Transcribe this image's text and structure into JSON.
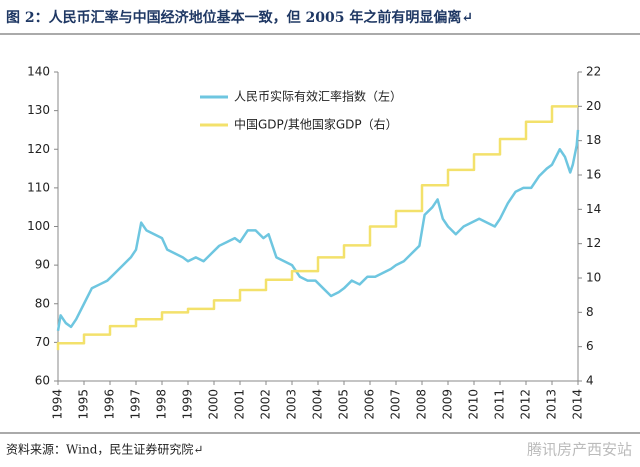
{
  "chart_data": {
    "type": "line",
    "title": "图 2：人民币汇率与中国经济地位基本一致，但 2005 年之前有明显偏离↵",
    "source": "资料来源：Wind，民生证券研究院↵",
    "watermark": "腾讯房产西安站",
    "xlim": [
      1994,
      2014
    ],
    "xticks": [
      1994,
      1995,
      1996,
      1997,
      1998,
      1999,
      2000,
      2001,
      2002,
      2003,
      2004,
      2005,
      2006,
      2007,
      2008,
      2009,
      2010,
      2011,
      2012,
      2013,
      2014
    ],
    "ylim": [
      60,
      140
    ],
    "yticks": [
      60,
      70,
      80,
      90,
      100,
      110,
      120,
      130,
      140
    ],
    "y2lim": [
      4,
      22
    ],
    "y2ticks": [
      4,
      6,
      8,
      10,
      12,
      14,
      16,
      18,
      20,
      22
    ],
    "grid": false,
    "series": [
      {
        "name": "人民币实际有效汇率指数（左）",
        "color": "#6ec6e0",
        "axis": "y",
        "x": [
          1994.0,
          1994.1,
          1994.3,
          1994.5,
          1994.7,
          1995.0,
          1995.3,
          1995.6,
          1995.9,
          1996.2,
          1996.5,
          1996.8,
          1997.0,
          1997.2,
          1997.4,
          1997.7,
          1998.0,
          1998.2,
          1998.5,
          1998.8,
          1999.0,
          1999.3,
          1999.6,
          1999.9,
          2000.2,
          2000.5,
          2000.8,
          2001.0,
          2001.3,
          2001.6,
          2001.9,
          2002.1,
          2002.4,
          2002.7,
          2003.0,
          2003.3,
          2003.6,
          2003.9,
          2004.2,
          2004.5,
          2004.8,
          2005.0,
          2005.3,
          2005.6,
          2005.9,
          2006.2,
          2006.5,
          2006.8,
          2007.0,
          2007.3,
          2007.6,
          2007.9,
          2008.1,
          2008.4,
          2008.6,
          2008.8,
          2009.0,
          2009.3,
          2009.6,
          2009.9,
          2010.2,
          2010.5,
          2010.8,
          2011.0,
          2011.3,
          2011.6,
          2011.9,
          2012.2,
          2012.5,
          2012.8,
          2013.0,
          2013.3,
          2013.5,
          2013.7,
          2013.8,
          2013.95,
          2014.0
        ],
        "values": [
          73,
          77,
          75,
          74,
          76,
          80,
          84,
          85,
          86,
          88,
          90,
          92,
          94,
          101,
          99,
          98,
          97,
          94,
          93,
          92,
          91,
          92,
          91,
          93,
          95,
          96,
          97,
          96,
          99,
          99,
          97,
          98,
          92,
          91,
          90,
          87,
          86,
          86,
          84,
          82,
          83,
          84,
          86,
          85,
          87,
          87,
          88,
          89,
          90,
          91,
          93,
          95,
          103,
          105,
          107,
          102,
          100,
          98,
          100,
          101,
          102,
          101,
          100,
          102,
          106,
          109,
          110,
          110,
          113,
          115,
          116,
          120,
          118,
          114,
          116,
          121,
          125
        ]
      },
      {
        "name": "中国GDP/其他国家GDP（右）",
        "color": "#f3e16b",
        "axis": "y2",
        "x": [
          1994,
          1994,
          1995,
          1995,
          1996,
          1996,
          1997,
          1997,
          1998,
          1998,
          1999,
          1999,
          2000,
          2000,
          2001,
          2001,
          2002,
          2002,
          2003,
          2003,
          2004,
          2004,
          2005,
          2005,
          2006,
          2006,
          2007,
          2007,
          2008,
          2008,
          2009,
          2009,
          2010,
          2010,
          2011,
          2011,
          2012,
          2012,
          2013,
          2013,
          2014
        ],
        "values": [
          5.8,
          6.2,
          6.2,
          6.7,
          6.7,
          7.2,
          7.2,
          7.6,
          7.6,
          8.0,
          8.0,
          8.2,
          8.2,
          8.7,
          8.7,
          9.3,
          9.3,
          9.9,
          9.9,
          10.4,
          10.4,
          11.2,
          11.2,
          11.9,
          11.9,
          13.0,
          13.0,
          13.9,
          13.9,
          15.4,
          15.4,
          16.3,
          16.3,
          17.2,
          17.2,
          18.1,
          18.1,
          19.1,
          19.1,
          20.0,
          20.0
        ]
      }
    ]
  }
}
